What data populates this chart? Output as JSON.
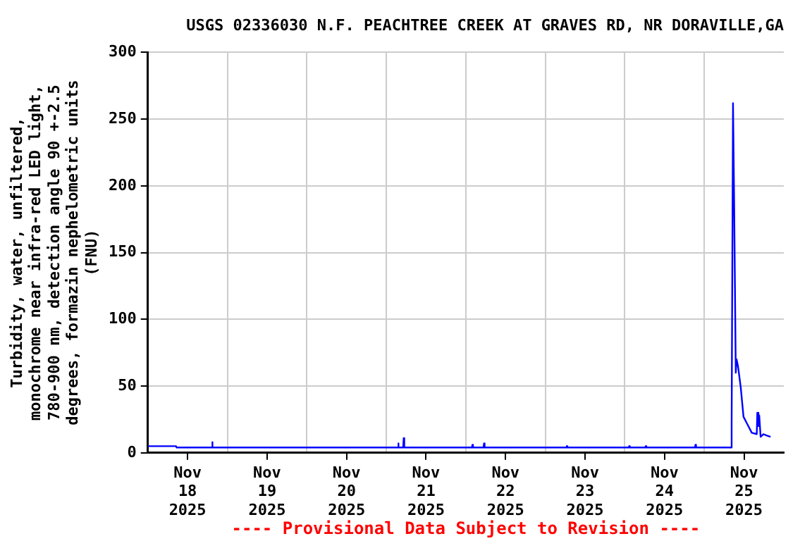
{
  "chart_data": {
    "type": "line",
    "title": "USGS 02336030 N.F. PEACHTREE CREEK AT GRAVES RD, NR DORAVILLE,GA",
    "ylabel": "Turbidity, water, unfiltered, monochrome near infra-red LED light, 780-900 nm, detection angle 90 +-2.5 degrees, formazin nephelometric units (FNU)",
    "annotations": [
      "---- Provisional Data Subject to Revision ----"
    ],
    "x": [
      "2025-11-18T00:00",
      "2025-11-18T08:30",
      "2025-11-18T08:40",
      "2025-11-18T19:15",
      "2025-11-18T19:25",
      "2025-11-18T19:35",
      "2025-11-21T03:25",
      "2025-11-21T03:35",
      "2025-11-21T03:45",
      "2025-11-21T05:05",
      "2025-11-21T05:15",
      "2025-11-21T05:25",
      "2025-11-22T01:50",
      "2025-11-22T02:00",
      "2025-11-22T02:10",
      "2025-11-22T05:20",
      "2025-11-22T05:30",
      "2025-11-22T05:40",
      "2025-11-23T06:20",
      "2025-11-23T06:30",
      "2025-11-23T06:40",
      "2025-11-24T01:10",
      "2025-11-24T01:20",
      "2025-11-24T01:30",
      "2025-11-24T06:10",
      "2025-11-24T06:20",
      "2025-11-24T06:30",
      "2025-11-24T21:10",
      "2025-11-24T21:20",
      "2025-11-24T21:30",
      "2025-11-25T08:10",
      "2025-11-25T08:15",
      "2025-11-25T08:40",
      "2025-11-25T09:00",
      "2025-11-25T09:30",
      "2025-11-25T09:45",
      "2025-11-25T10:10",
      "2025-11-25T11:00",
      "2025-11-25T11:50",
      "2025-11-25T13:05",
      "2025-11-25T14:20",
      "2025-11-25T15:50",
      "2025-11-25T16:00",
      "2025-11-25T16:20",
      "2025-11-25T16:35",
      "2025-11-25T17:00",
      "2025-11-25T17:50",
      "2025-11-25T18:45",
      "2025-11-25T20:00"
    ],
    "series": [
      {
        "color": "#0000ff",
        "values": [
          5,
          5,
          4,
          4,
          8,
          4,
          4,
          7,
          4,
          4,
          11,
          4,
          4,
          6,
          4,
          4,
          7,
          4,
          4,
          5,
          4,
          4,
          5,
          4,
          4,
          5,
          4,
          4,
          6,
          4,
          4,
          21,
          262,
          189,
          60,
          70,
          65,
          49,
          27,
          21,
          15,
          14,
          30,
          20,
          28,
          12,
          14,
          13,
          12
        ]
      }
    ],
    "xlim": [
      "2025-11-18T00:00",
      "2025-11-26T00:00"
    ],
    "xticks": [
      {
        "value": "2025-11-18T12:00",
        "label": "Nov 18 2025"
      },
      {
        "value": "2025-11-19T00:00",
        "label": null
      },
      {
        "value": "2025-11-19T12:00",
        "label": "Nov 19 2025"
      },
      {
        "value": "2025-11-20T00:00",
        "label": null
      },
      {
        "value": "2025-11-20T12:00",
        "label": "Nov 20 2025"
      },
      {
        "value": "2025-11-21T00:00",
        "label": null
      },
      {
        "value": "2025-11-21T12:00",
        "label": "Nov 21 2025"
      },
      {
        "value": "2025-11-22T00:00",
        "label": null
      },
      {
        "value": "2025-11-22T12:00",
        "label": "Nov 22 2025"
      },
      {
        "value": "2025-11-23T00:00",
        "label": null
      },
      {
        "value": "2025-11-23T12:00",
        "label": "Nov 23 2025"
      },
      {
        "value": "2025-11-24T00:00",
        "label": null
      },
      {
        "value": "2025-11-24T12:00",
        "label": "Nov 24 2025"
      },
      {
        "value": "2025-11-25T00:00",
        "label": null
      },
      {
        "value": "2025-11-25T12:00",
        "label": "Nov 25 2025"
      }
    ],
    "ylim": [
      0,
      300
    ],
    "yticks": [
      0,
      50,
      100,
      150,
      200,
      250,
      300
    ],
    "grid": true,
    "legend": false,
    "marker": "none",
    "line_style": "solid"
  }
}
